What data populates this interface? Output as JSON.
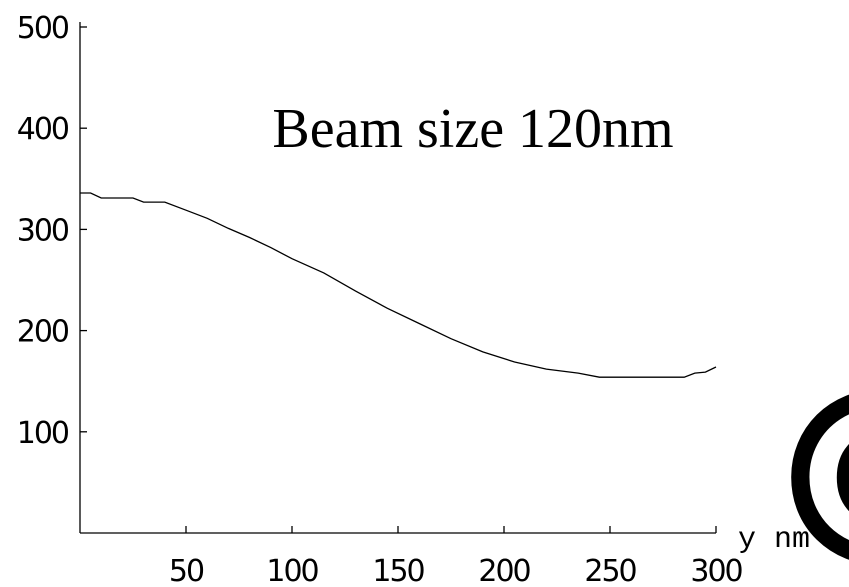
{
  "chart_data": {
    "type": "line",
    "title": "Beam size 120nm",
    "xlabel": "y nm",
    "ylabel": "",
    "xlim": [
      0,
      300
    ],
    "ylim": [
      0,
      500
    ],
    "xticks": [
      50,
      100,
      150,
      200,
      250,
      300
    ],
    "yticks": [
      100,
      200,
      300,
      400,
      500
    ],
    "grid": false,
    "series": [
      {
        "x": [
          0,
          5,
          10,
          15,
          20,
          25,
          30,
          35,
          40,
          50,
          60,
          70,
          80,
          90,
          100,
          115,
          130,
          145,
          160,
          175,
          190,
          205,
          220,
          235,
          245,
          255,
          265,
          275,
          285,
          290,
          295,
          300
        ],
        "y": [
          336,
          336,
          331,
          331,
          331,
          331,
          327,
          327,
          327,
          319,
          311,
          301,
          292,
          282,
          271,
          257,
          239,
          222,
          207,
          192,
          179,
          169,
          162,
          158,
          154,
          154,
          154,
          154,
          154,
          158,
          159,
          164
        ]
      }
    ]
  },
  "decoration": {
    "glyph": "@"
  }
}
